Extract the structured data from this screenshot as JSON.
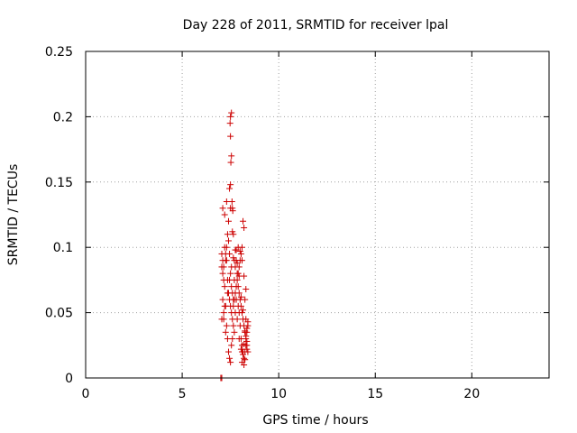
{
  "chart_data": {
    "type": "scatter",
    "title": "Day 228 of 2011, SRMTID for receiver lpal",
    "xlabel": "GPS time / hours",
    "ylabel": "SRMTID / TECUs",
    "xlim": [
      0,
      24
    ],
    "ylim": [
      0,
      0.25
    ],
    "xticks": [
      0,
      5,
      10,
      15,
      20
    ],
    "yticks": [
      0,
      0.05,
      0.1,
      0.15,
      0.2,
      0.25
    ],
    "ytick_labels": [
      "0",
      "0.05",
      "0.1",
      "0.15",
      "0.2",
      "0.25"
    ],
    "grid": true,
    "marker": "+",
    "color": "#cc0000",
    "series": [
      {
        "x": [
          7.05,
          7.1,
          7.15,
          7.2,
          7.25,
          7.3,
          7.35,
          7.4,
          7.45,
          7.5,
          7.55,
          7.6,
          7.65,
          7.7,
          7.75,
          7.8,
          7.85,
          7.9,
          7.95,
          8.0,
          8.05,
          8.1,
          8.15,
          8.2,
          8.25,
          8.3,
          8.35,
          8.4,
          7.05,
          7.1,
          7.15,
          7.2,
          7.25,
          7.3,
          7.35,
          7.4,
          7.45,
          7.5,
          7.55,
          7.6,
          7.65,
          7.7,
          7.75,
          7.8,
          7.85,
          7.9,
          7.95,
          8.0,
          8.05,
          8.1,
          8.15,
          8.2,
          8.25,
          8.3,
          8.35,
          8.4,
          7.05,
          7.1,
          7.15,
          7.2,
          7.25,
          7.3,
          7.35,
          7.4,
          7.45,
          7.5,
          7.55,
          7.6,
          7.65,
          7.7,
          7.75,
          7.8,
          7.85,
          7.9,
          7.95,
          8.0,
          8.05,
          8.1,
          8.15,
          8.2,
          8.25,
          8.3,
          8.35,
          8.4,
          7.45,
          7.5,
          7.52,
          7.55,
          7.5,
          7.48,
          7.5,
          7.55,
          7.6,
          7.62,
          7.58,
          7.65,
          7.1,
          7.2,
          7.3,
          7.4,
          7.5,
          7.6,
          7.7,
          7.8,
          7.9,
          8.0,
          8.1,
          8.2,
          8.3,
          7.15,
          7.25,
          7.35,
          7.45,
          7.55,
          7.65,
          7.75,
          7.85,
          7.95,
          8.05,
          8.15,
          8.25,
          8.35,
          8.1,
          8.2,
          8.15,
          8.05,
          8.25,
          7.95,
          8.3,
          8.35,
          8.1,
          8.2
        ],
        "y": [
          0.045,
          0.06,
          0.05,
          0.055,
          0.035,
          0.04,
          0.03,
          0.02,
          0.015,
          0.012,
          0.025,
          0.03,
          0.04,
          0.035,
          0.05,
          0.06,
          0.045,
          0.055,
          0.05,
          0.04,
          0.03,
          0.025,
          0.02,
          0.015,
          0.02,
          0.025,
          0.035,
          0.04,
          0.085,
          0.08,
          0.075,
          0.07,
          0.09,
          0.1,
          0.11,
          0.105,
          0.095,
          0.08,
          0.07,
          0.065,
          0.06,
          0.075,
          0.085,
          0.09,
          0.08,
          0.07,
          0.065,
          0.06,
          0.055,
          0.05,
          0.045,
          0.04,
          0.035,
          0.03,
          0.025,
          0.02,
          0.095,
          0.09,
          0.085,
          0.1,
          0.095,
          0.09,
          0.075,
          0.065,
          0.06,
          0.055,
          0.05,
          0.045,
          0.055,
          0.06,
          0.065,
          0.07,
          0.075,
          0.08,
          0.085,
          0.09,
          0.095,
          0.1,
          0.12,
          0.115,
          0.06,
          0.045,
          0.038,
          0.043,
          0.145,
          0.148,
          0.165,
          0.17,
          0.185,
          0.195,
          0.2,
          0.203,
          0.13,
          0.128,
          0.135,
          0.11,
          0.13,
          0.125,
          0.135,
          0.12,
          0.13,
          0.112,
          0.09,
          0.098,
          0.1,
          0.097,
          0.09,
          0.078,
          0.068,
          0.045,
          0.055,
          0.065,
          0.075,
          0.085,
          0.092,
          0.098,
          0.088,
          0.078,
          0.062,
          0.052,
          0.036,
          0.028,
          0.012,
          0.01,
          0.018,
          0.022,
          0.014,
          0.03,
          0.032,
          0.022,
          0.02,
          0.026
        ],
        "x_zero": [
          7.0,
          7.05
        ],
        "y_zero": [
          0.0,
          0.0
        ]
      }
    ]
  }
}
